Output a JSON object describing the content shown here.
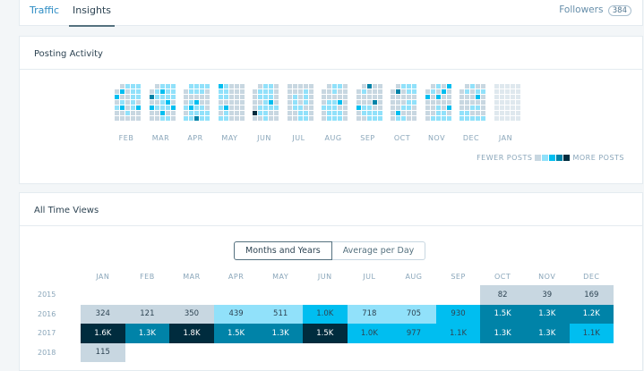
{
  "tabs": {
    "traffic": "Traffic",
    "insights": "Insights",
    "followers_label": "Followers",
    "followers_count": "384"
  },
  "posting": {
    "title": "Posting Activity",
    "legend_fewer": "FEWER POSTS",
    "legend_more": "MORE POSTS",
    "colors": [
      "#c8d7e1",
      "#91e1fa",
      "#00bef0",
      "#0083a8",
      "#002c3e"
    ],
    "months": [
      {
        "label": "FEB",
        "grid": [
          ".0111",
          "02011",
          "20011",
          "01010",
          "12012",
          "00100",
          "00000"
        ]
      },
      {
        "label": "MAR",
        "grid": [
          ".0111",
          "01211",
          "31111",
          "00120",
          "21112",
          "00200",
          "00110"
        ]
      },
      {
        "label": "APR",
        "grid": [
          ".1111",
          "01110",
          "00000",
          "01200",
          "12110",
          "01111",
          "11311"
        ]
      },
      {
        "label": "MAY",
        "grid": [
          "21000",
          "11000",
          "11000",
          "00000",
          "12000",
          "01000",
          "11000"
        ]
      },
      {
        "label": "JUN",
        "grid": [
          ".0110",
          "01110",
          "01110",
          "00120",
          "01111",
          "41100",
          "00100"
        ]
      },
      {
        "label": "JUL",
        "grid": [
          "00000",
          "00010",
          "01010",
          "01010",
          "01100",
          "00110",
          "00110"
        ]
      },
      {
        "label": "AUG",
        "grid": [
          ".0110",
          "00100",
          "00000",
          "01120",
          "11100",
          "01110",
          "01110"
        ]
      },
      {
        "label": "SEP",
        "grid": [
          ".0300",
          "01000",
          "00000",
          "00030",
          "21100",
          "01111",
          "00111"
        ]
      },
      {
        "label": "OCT",
        "grid": [
          ".0111",
          "03011",
          "00000",
          "00011",
          "00110",
          "02000",
          "01100"
        ]
      },
      {
        "label": "NOV",
        "grid": [
          ".0102",
          "01020",
          "20200",
          "00000",
          "00102",
          "00110",
          "01111"
        ]
      },
      {
        "label": "DEC",
        "grid": [
          ".0100",
          "01011",
          "00020",
          "00000",
          "00110",
          "11000",
          "11111"
        ]
      },
      {
        "label": "JAN",
        "grid": [
          "10000",
          "00000",
          "00000",
          "00000",
          "00000",
          "00000",
          "00000"
        ]
      }
    ]
  },
  "views": {
    "title": "All Time Views",
    "toggle": [
      "Months and Years",
      "Average per Day"
    ],
    "columns": [
      "JAN",
      "FEB",
      "MAR",
      "APR",
      "MAY",
      "JUN",
      "JUL",
      "AUG",
      "SEP",
      "OCT",
      "NOV",
      "DEC"
    ],
    "rows": [
      {
        "year": "2015",
        "values": [
          "",
          "",
          "",
          "",
          "",
          "",
          "",
          "",
          "",
          "82",
          "39",
          "169"
        ],
        "levels": [
          -1,
          -1,
          -1,
          -1,
          -1,
          -1,
          -1,
          -1,
          -1,
          0,
          0,
          0
        ]
      },
      {
        "year": "2016",
        "values": [
          "324",
          "121",
          "350",
          "439",
          "511",
          "1.0K",
          "718",
          "705",
          "930",
          "1.5K",
          "1.3K",
          "1.2K"
        ],
        "levels": [
          0,
          0,
          0,
          1,
          1,
          2,
          1,
          1,
          2,
          3,
          3,
          3
        ]
      },
      {
        "year": "2017",
        "values": [
          "1.6K",
          "1.3K",
          "1.8K",
          "1.5K",
          "1.3K",
          "1.5K",
          "1.0K",
          "977",
          "1.1K",
          "1.3K",
          "1.3K",
          "1.1K"
        ],
        "levels": [
          4,
          3,
          4,
          3,
          3,
          4,
          2,
          2,
          2,
          3,
          3,
          2
        ]
      },
      {
        "year": "2018",
        "values": [
          "115",
          "",
          "",
          "",
          "",
          "",
          "",
          "",
          "",
          "",
          "",
          ""
        ],
        "levels": [
          0,
          -1,
          -1,
          -1,
          -1,
          -1,
          -1,
          -1,
          -1,
          -1,
          -1,
          -1
        ]
      }
    ]
  }
}
